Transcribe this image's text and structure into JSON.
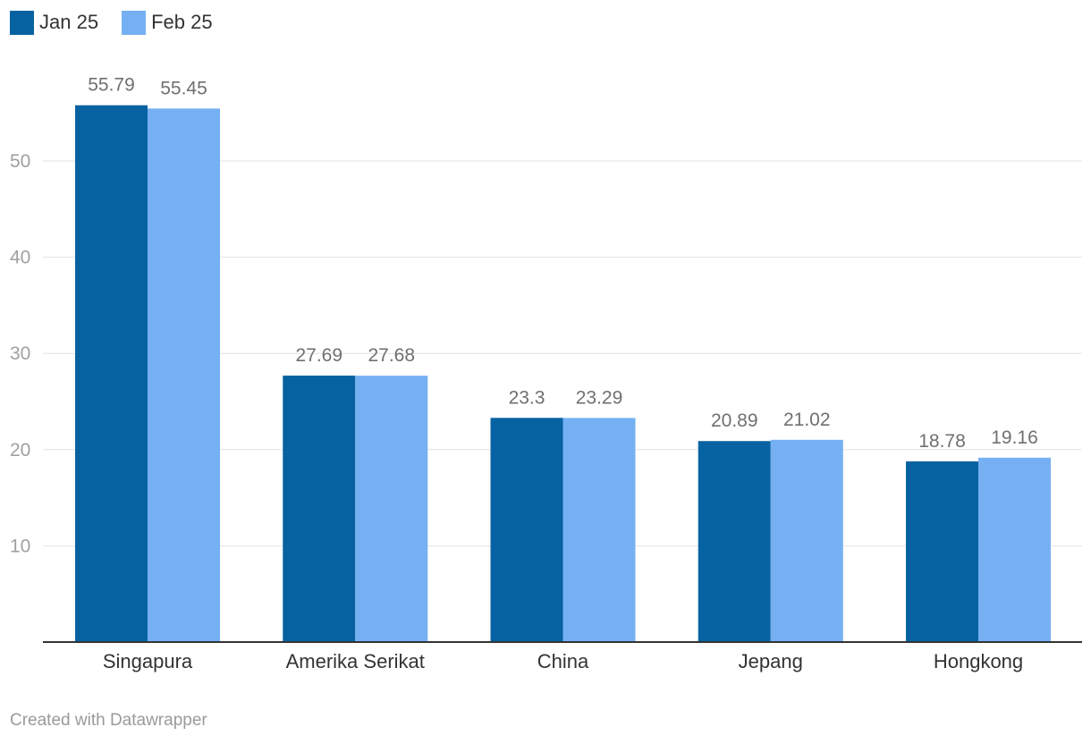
{
  "chart_data": {
    "type": "bar",
    "categories": [
      "Singapura",
      "Amerika Serikat",
      "China",
      "Jepang",
      "Hongkong"
    ],
    "series": [
      {
        "name": "Jan 25",
        "color": "#0762a1",
        "values": [
          55.79,
          27.69,
          23.3,
          20.89,
          18.78
        ]
      },
      {
        "name": "Feb 25",
        "color": "#75b0f2",
        "values": [
          55.45,
          27.68,
          23.29,
          21.02,
          19.16
        ]
      }
    ],
    "value_labels": [
      [
        "55.79",
        "27.69",
        "23.3",
        "20.89",
        "18.78"
      ],
      [
        "55.45",
        "27.68",
        "23.29",
        "21.02",
        "19.16"
      ]
    ],
    "yticks": [
      "10",
      "20",
      "30",
      "40",
      "50"
    ],
    "ylim": [
      0,
      60
    ],
    "grid": true,
    "legend_position": "top-left"
  },
  "footer": {
    "credit": "Created with Datawrapper"
  }
}
